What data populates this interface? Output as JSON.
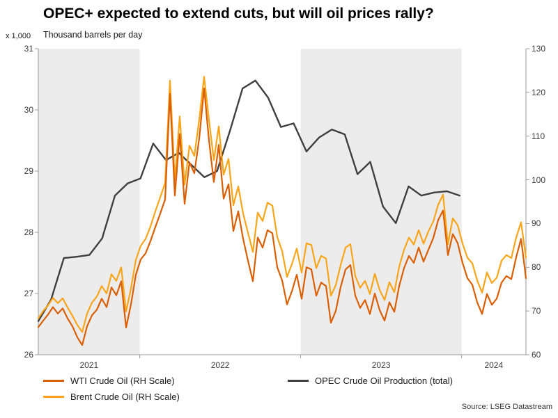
{
  "title": "OPEC+ expected to extend cuts, but will oil prices rally?",
  "source": "Source: LSEG Datastream",
  "chart_data": {
    "type": "line",
    "title": "OPEC+ expected to extend cuts, but will oil prices rally?",
    "subtitle": "Thousand barrels per day",
    "legend_position": "bottom",
    "band_color": "#ececec",
    "axis_color": "#9a9a9a",
    "left_axis": {
      "multiplier_label": "x 1,000",
      "min": 26,
      "max": 31,
      "ticks": [
        26,
        27,
        28,
        29,
        30,
        31
      ]
    },
    "right_axis": {
      "min": 60,
      "max": 130,
      "ticks": [
        60,
        70,
        80,
        90,
        100,
        110,
        120,
        130
      ]
    },
    "x_axis": {
      "labels": [
        {
          "label": "2021",
          "t": 0.104
        },
        {
          "label": "2022",
          "t": 0.373
        },
        {
          "label": "2023",
          "t": 0.703
        },
        {
          "label": "2024",
          "t": 0.934
        }
      ],
      "tick_positions": [
        0.208,
        0.538,
        0.868
      ]
    },
    "bands": [
      {
        "t0": 0.0,
        "t1": 0.208
      },
      {
        "t0": 0.538,
        "t1": 0.868
      }
    ],
    "series": [
      {
        "id": "wti-line",
        "name": "WTI Crude Oil (RH Scale)",
        "color": "#d95f02",
        "axis": "right",
        "t0": 0.0,
        "t1": 1.0,
        "values": [
          66.3,
          67.8,
          69.2,
          70.9,
          69.4,
          70.6,
          68.3,
          66.5,
          64.0,
          62.2,
          66.5,
          69.0,
          70.3,
          72.8,
          70.9,
          75.4,
          73.6,
          76.8,
          66.2,
          71.5,
          78.3,
          81.8,
          83.2,
          86.0,
          89.2,
          92.3,
          95.5,
          119.7,
          96.4,
          110.5,
          94.5,
          104.0,
          101.5,
          109.5,
          120.9,
          109.0,
          99.5,
          108.0,
          95.7,
          99.0,
          88.3,
          92.8,
          86.5,
          81.5,
          76.8,
          86.8,
          84.5,
          88.5,
          87.8,
          80.0,
          77.0,
          71.5,
          74.5,
          78.3,
          72.8,
          80.0,
          79.5,
          73.5,
          76.5,
          75.7,
          67.3,
          70.0,
          75.5,
          79.5,
          80.5,
          73.5,
          70.7,
          72.5,
          69.3,
          74.0,
          70.2,
          67.8,
          72.0,
          69.8,
          75.7,
          79.8,
          82.6,
          81.0,
          84.5,
          81.3,
          84.0,
          86.7,
          90.8,
          93.0,
          82.8,
          87.6,
          85.5,
          81.0,
          77.5,
          76.0,
          72.0,
          69.3,
          73.9,
          71.4,
          72.8,
          76.5,
          78.0,
          77.3,
          82.3,
          86.5,
          77.5
        ]
      },
      {
        "id": "brent-line",
        "name": "Brent Crude Oil (RH Scale)",
        "color": "#f9a51a",
        "axis": "right",
        "t0": 0.0,
        "t1": 1.0,
        "values": [
          68.3,
          70.0,
          71.3,
          73.0,
          71.8,
          72.9,
          70.8,
          68.9,
          66.8,
          65.2,
          69.4,
          71.9,
          73.3,
          75.7,
          74.0,
          78.4,
          76.9,
          80.0,
          69.9,
          75.2,
          81.7,
          84.9,
          86.5,
          89.3,
          92.8,
          96.0,
          99.3,
          122.7,
          99.9,
          114.5,
          98.9,
          107.8,
          105.5,
          113.8,
          123.6,
          113.7,
          104.5,
          112.2,
          101.2,
          104.8,
          94.2,
          98.5,
          92.3,
          87.9,
          83.5,
          92.5,
          90.6,
          94.8,
          94.1,
          86.9,
          83.7,
          77.8,
          80.7,
          84.3,
          78.8,
          85.5,
          85.1,
          79.8,
          82.6,
          82.0,
          73.5,
          75.9,
          80.5,
          84.5,
          85.3,
          78.0,
          75.3,
          76.9,
          73.9,
          78.5,
          74.8,
          72.5,
          76.6,
          74.3,
          80.1,
          84.0,
          86.8,
          85.2,
          88.5,
          85.4,
          88.2,
          90.5,
          94.3,
          96.6,
          85.3,
          91.2,
          89.6,
          85.4,
          82.2,
          80.9,
          77.0,
          74.2,
          78.8,
          76.4,
          77.6,
          81.5,
          82.8,
          82.1,
          86.8,
          90.3,
          82.2
        ]
      },
      {
        "id": "opec-line",
        "name": "OPEC Crude Oil Production (total)",
        "color": "#3f3f3f",
        "axis": "left",
        "t0": 0.0,
        "t1": 0.864,
        "values": [
          26.55,
          26.9,
          27.58,
          27.6,
          27.63,
          27.9,
          28.6,
          28.8,
          28.88,
          29.45,
          29.18,
          29.3,
          29.1,
          28.9,
          29.0,
          29.65,
          30.35,
          30.48,
          30.2,
          29.72,
          29.78,
          29.32,
          29.55,
          29.68,
          29.6,
          28.95,
          29.15,
          28.42,
          28.15,
          28.75,
          28.6,
          28.65,
          28.67,
          28.6
        ]
      }
    ]
  }
}
